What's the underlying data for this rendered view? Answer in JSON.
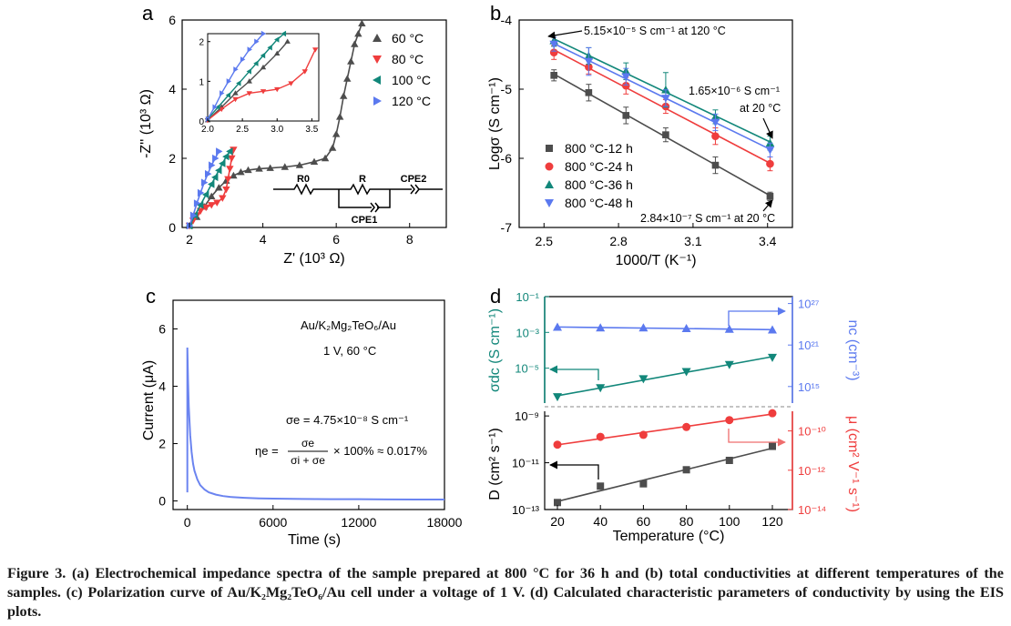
{
  "panels": {
    "a": {
      "label": "a",
      "xlabel": "Z' (10³ Ω)",
      "ylabel": "-Z'' (10³ Ω)",
      "circuit": {
        "R0": "R0",
        "R": "R",
        "CPE2": "CPE2",
        "CPE1": "CPE1"
      },
      "chart_data": {
        "type": "scatter",
        "xlim": [
          1.8,
          9.0
        ],
        "ylim": [
          0,
          6
        ],
        "xticks": [
          "2",
          "4",
          "6",
          "8"
        ],
        "yticks": [
          "0",
          "2",
          "4",
          "6"
        ],
        "legend_position": "top-right",
        "series": [
          {
            "name": "60 °C",
            "color": "#4d4d4d",
            "marker": "triangle-up",
            "x": [
              2.0,
              2.2,
              2.4,
              2.6,
              2.8,
              3.0,
              3.2,
              3.4,
              3.6,
              3.9,
              4.2,
              4.6,
              5.0,
              5.4,
              5.7,
              5.9,
              6.0,
              6.1,
              6.2,
              6.3,
              6.4,
              6.5,
              6.6,
              6.7
            ],
            "y": [
              0.05,
              0.3,
              0.6,
              0.9,
              1.15,
              1.35,
              1.5,
              1.6,
              1.66,
              1.7,
              1.72,
              1.75,
              1.8,
              1.9,
              2.0,
              2.3,
              2.7,
              3.2,
              3.8,
              4.3,
              4.8,
              5.3,
              5.6,
              5.9
            ]
          },
          {
            "name": "80 °C",
            "color": "#ef3d3d",
            "marker": "triangle-down",
            "x": [
              2.0,
              2.1,
              2.2,
              2.3,
              2.45,
              2.6,
              2.75,
              2.9,
              3.0,
              3.05,
              3.1,
              3.15,
              3.2
            ],
            "y": [
              0.05,
              0.2,
              0.35,
              0.48,
              0.58,
              0.65,
              0.72,
              0.85,
              1.1,
              1.4,
              1.7,
              2.0,
              2.25
            ]
          },
          {
            "name": "100 °C",
            "color": "#12877a",
            "marker": "triangle-left",
            "x": [
              2.0,
              2.15,
              2.3,
              2.45,
              2.6,
              2.7,
              2.8,
              2.9,
              3.0,
              3.1
            ],
            "y": [
              0.05,
              0.35,
              0.65,
              0.95,
              1.25,
              1.45,
              1.65,
              1.85,
              2.05,
              2.2
            ]
          },
          {
            "name": "120 °C",
            "color": "#5b79ef",
            "marker": "triangle-right",
            "x": [
              2.0,
              2.1,
              2.2,
              2.3,
              2.4,
              2.5,
              2.6,
              2.7,
              2.8
            ],
            "y": [
              0.05,
              0.35,
              0.7,
              1.0,
              1.3,
              1.55,
              1.8,
              2.0,
              2.2
            ]
          }
        ],
        "inset": {
          "xlim": [
            2.0,
            3.6
          ],
          "ylim": [
            0,
            2.2
          ],
          "xticks": [
            "2.0",
            "2.5",
            "3.0",
            "3.5"
          ],
          "yticks": [
            "0",
            "1",
            "2"
          ]
        }
      }
    },
    "b": {
      "label": "b",
      "xlabel": "1000/T (K⁻¹)",
      "ylabel": "Logσ (S cm⁻¹)",
      "annotations": {
        "top": "5.15×10⁻⁵ S cm⁻¹ at 120 °C",
        "mid1": "1.65×10⁻⁶ S cm⁻¹",
        "mid2": "at 20 °C",
        "bottom": "2.84×10⁻⁷ S cm⁻¹ at 20 °C"
      },
      "chart_data": {
        "type": "scatter",
        "xlim": [
          2.4,
          3.5
        ],
        "ylim": [
          -7,
          -4
        ],
        "xticks": [
          "2.5",
          "2.8",
          "3.1",
          "3.4"
        ],
        "yticks": [
          "-4",
          "-5",
          "-6",
          "-7"
        ],
        "legend_position": "bottom-left",
        "x": [
          2.54,
          2.68,
          2.83,
          2.99,
          3.19,
          3.41
        ],
        "series": [
          {
            "name": "800 °C-12 h",
            "color": "#4d4d4d",
            "marker": "square",
            "y": [
              -4.8,
              -5.05,
              -5.38,
              -5.66,
              -6.1,
              -6.55
            ],
            "err": [
              0.08,
              0.12,
              0.12,
              0.1,
              0.12,
              0.06
            ]
          },
          {
            "name": "800 °C-24 h",
            "color": "#ef3d3d",
            "marker": "circle",
            "y": [
              -4.47,
              -4.68,
              -4.95,
              -5.25,
              -5.68,
              -6.08
            ],
            "err": [
              0.1,
              0.1,
              0.12,
              0.1,
              0.12,
              0.1
            ]
          },
          {
            "name": "800 °C-36 h",
            "color": "#12877a",
            "marker": "triangle-up",
            "y": [
              -4.3,
              -4.52,
              -4.74,
              -5.01,
              -5.4,
              -5.78
            ],
            "err": [
              0.08,
              0.12,
              0.12,
              0.25,
              0.1,
              0.1
            ]
          },
          {
            "name": "800 °C-48 h",
            "color": "#5b79ef",
            "marker": "triangle-down",
            "y": [
              -4.35,
              -4.6,
              -4.82,
              -5.13,
              -5.48,
              -5.88
            ],
            "err": [
              0.1,
              0.2,
              0.12,
              0.12,
              0.12,
              0.1
            ]
          }
        ]
      }
    },
    "c": {
      "label": "c",
      "xlabel": "Time (s)",
      "ylabel": "Current (μA)",
      "cell": "Au/K₂Mg₂TeO₆/Au",
      "condition": "1 V, 60 °C",
      "sigma_e": "σe = 4.75×10⁻⁸ S cm⁻¹",
      "eta_lhs": "ηe =",
      "eta_num": "σe",
      "eta_den": "σi + σe",
      "eta_rhs": "× 100% ≈ 0.017%",
      "chart_data": {
        "type": "line",
        "xlim": [
          -1000,
          18000
        ],
        "ylim": [
          -0.3,
          7
        ],
        "xticks": [
          "0",
          "6000",
          "12000",
          "18000"
        ],
        "yticks": [
          "0",
          "2",
          "4",
          "6"
        ],
        "series": [
          {
            "color": "#6b84f0",
            "x": [
              0,
              50,
              100,
              200,
              300,
              400,
              500,
              700,
              900,
              1200,
              1500,
              2000,
              2500,
              3000,
              4000,
              5000,
              6000,
              8000,
              10000,
              12000,
              14000,
              16000,
              18000
            ],
            "y": [
              5.35,
              4.2,
              3.3,
              2.3,
              1.7,
              1.3,
              1.05,
              0.75,
              0.55,
              0.4,
              0.3,
              0.22,
              0.17,
              0.14,
              0.11,
              0.09,
              0.08,
              0.07,
              0.06,
              0.06,
              0.055,
              0.05,
              0.05
            ]
          }
        ]
      }
    },
    "d": {
      "label": "d",
      "xlabel": "Temperature (°C)",
      "ylabel_tl": "σdc (S cm⁻¹)",
      "ylabel_tr": "nc (cm⁻³)",
      "ylabel_bl": "D (cm² s⁻¹)",
      "ylabel_br": "μ (cm² V⁻¹ s⁻¹)",
      "chart_data": {
        "type": "scatter",
        "x": [
          20,
          40,
          60,
          80,
          100,
          120
        ],
        "xticks": [
          "20",
          "40",
          "60",
          "80",
          "100",
          "120"
        ],
        "ticks": {
          "sigma": [
            "10⁻¹",
            "10⁻³",
            "10⁻⁵"
          ],
          "nc": [
            "10²⁷",
            "10²¹",
            "10¹⁵"
          ],
          "D": [
            "10⁻⁹",
            "10⁻¹¹",
            "10⁻¹³"
          ],
          "mu": [
            "10⁻¹⁰",
            "10⁻¹²",
            "10⁻¹⁴"
          ]
        },
        "series": [
          {
            "name": "σdc",
            "color": "#12877a",
            "marker": "triangle-down",
            "log10": [
              -6.6,
              -6.1,
              -5.6,
              -5.2,
              -4.8,
              -4.4
            ]
          },
          {
            "name": "nc",
            "color": "#5b79ef",
            "marker": "triangle-up",
            "log10": [
              23.6,
              23.5,
              23.5,
              23.4,
              23.3,
              23.2
            ]
          },
          {
            "name": "D",
            "color": "#4d4d4d",
            "marker": "square",
            "log10": [
              -12.7,
              -12.0,
              -11.9,
              -11.3,
              -10.9,
              -10.3
            ]
          },
          {
            "name": "μ",
            "color": "#ef3d3d",
            "marker": "circle",
            "log10": [
              -10.7,
              -10.3,
              -10.2,
              -9.8,
              -9.45,
              -9.1
            ]
          }
        ]
      }
    }
  },
  "caption": "Figure 3. (a) Electrochemical impedance spectra of the sample prepared at 800 °C for 36 h and (b) total conductivities at different temperatures of the samples. (c) Polarization curve of Au/K₂Mg₂TeO₆/Au cell under a voltage of 1 V. (d) Calculated characteristic parameters of conductivity by using the EIS plots."
}
